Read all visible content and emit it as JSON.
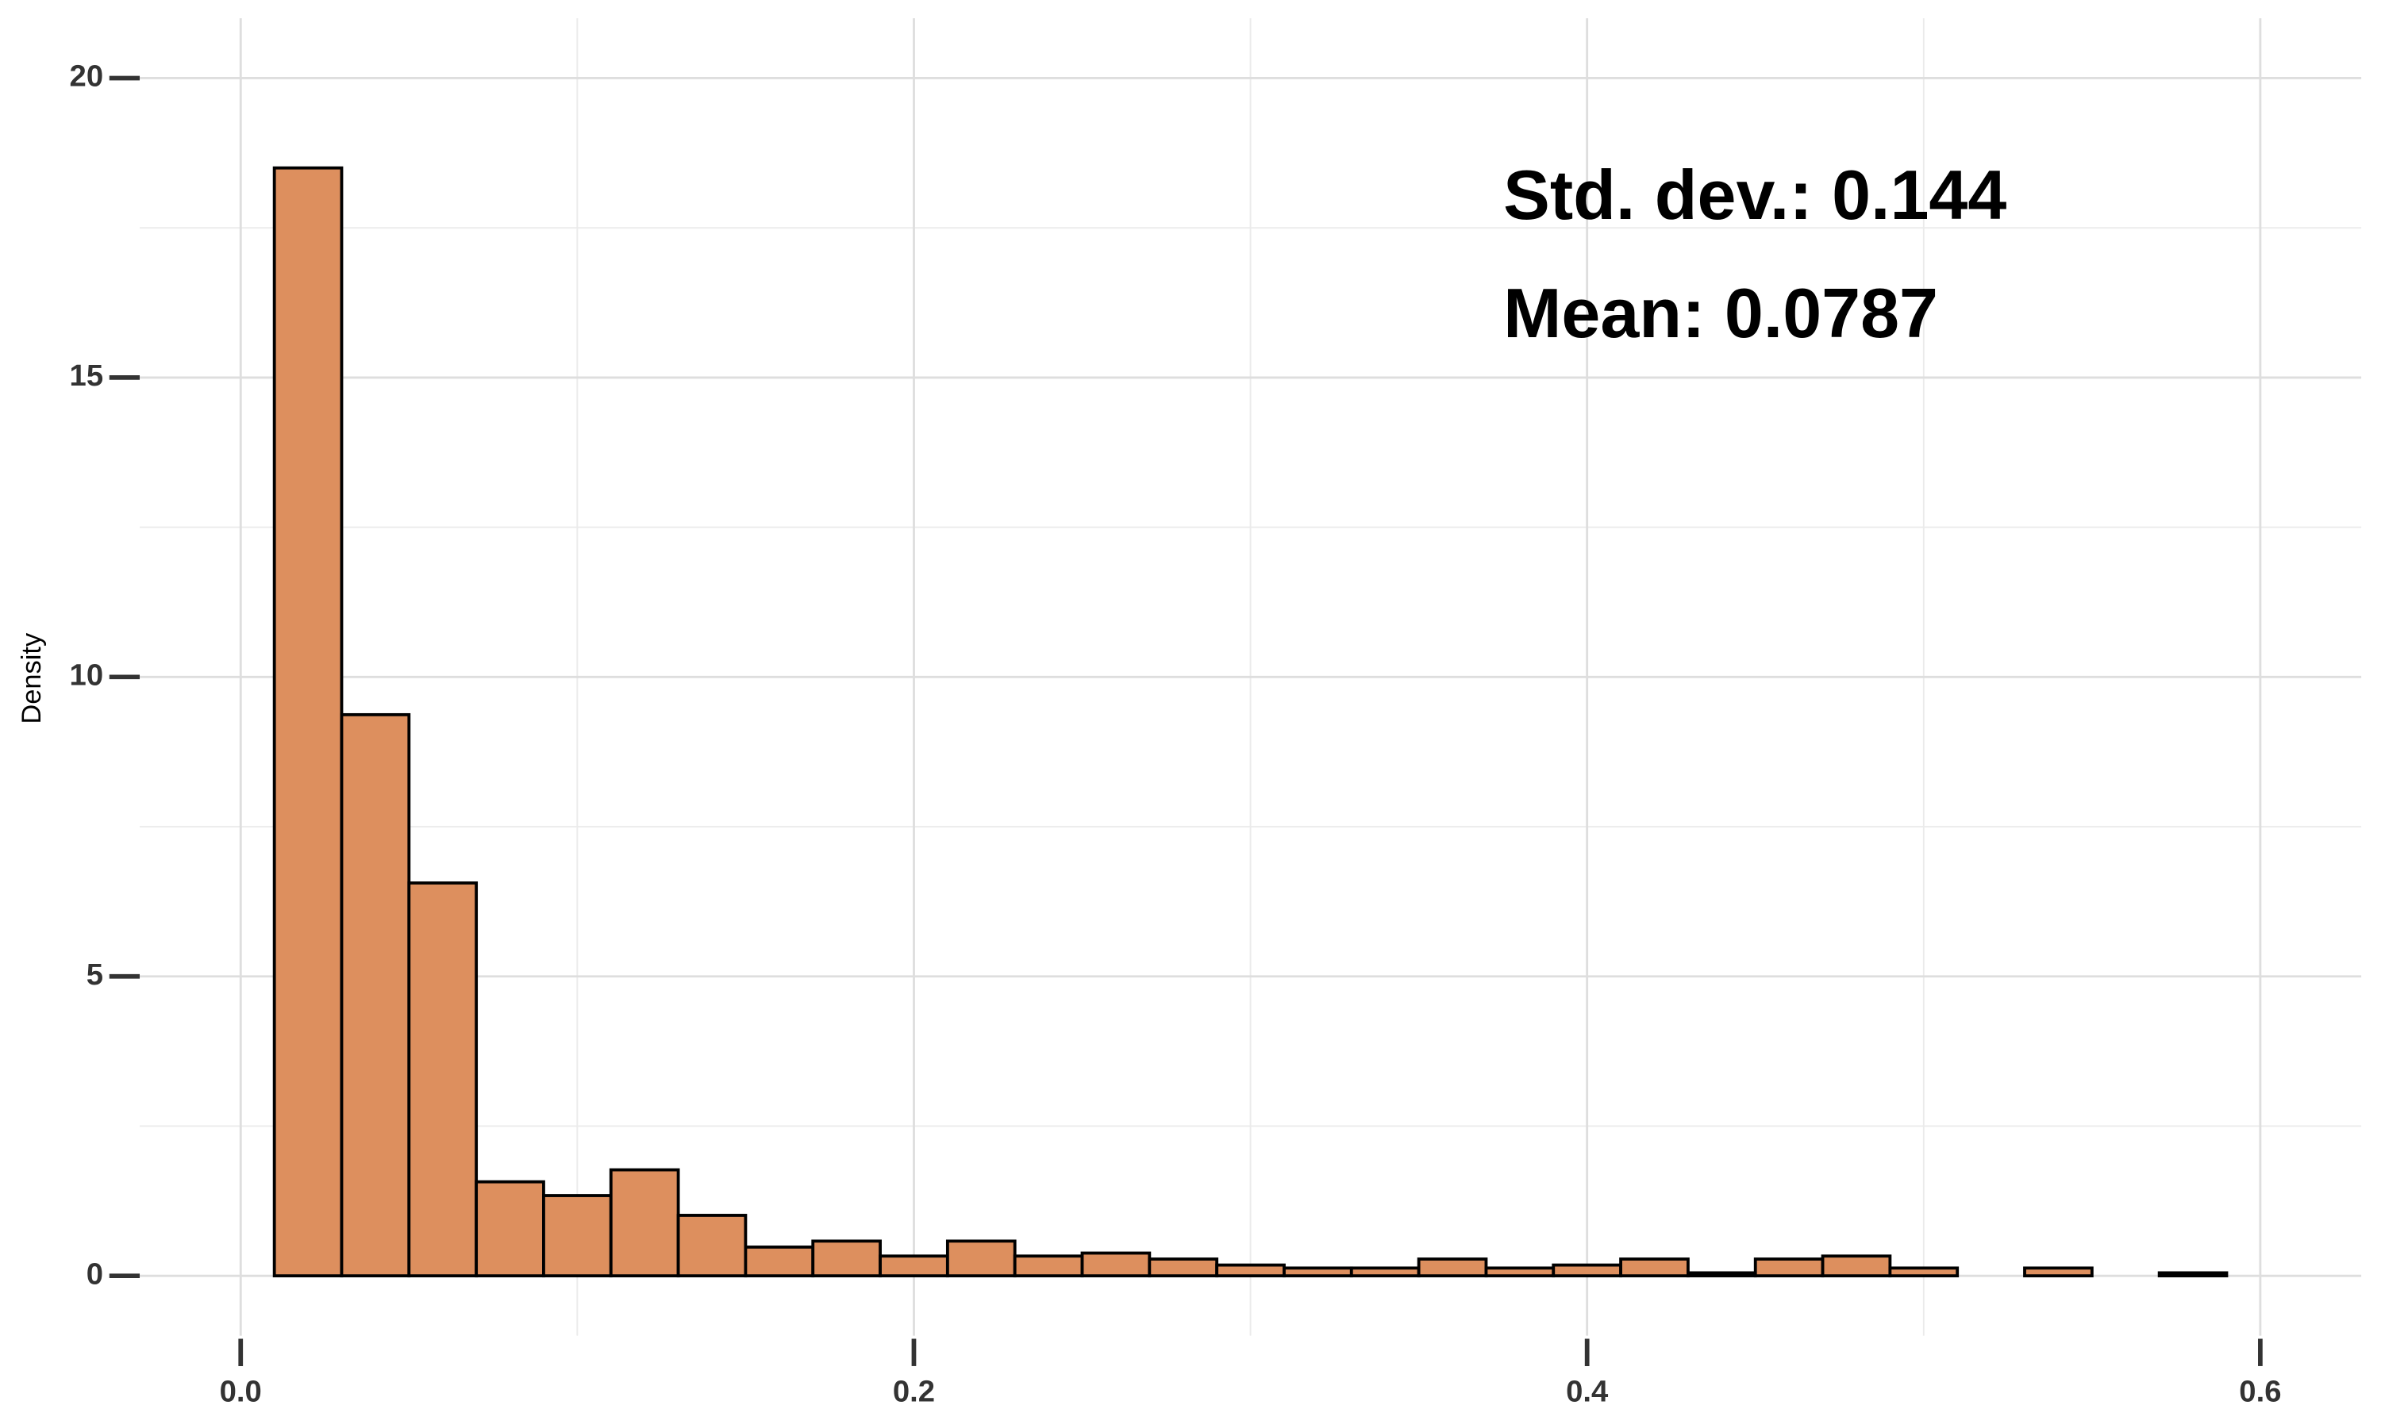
{
  "chart_data": {
    "type": "histogram",
    "y_label": "Density",
    "annotations": [
      "Std. dev.: 0.144",
      "Mean: 0.0787"
    ],
    "bins": [
      0.01,
      0.03,
      0.05,
      0.07,
      0.09,
      0.11,
      0.13,
      0.15,
      0.17,
      0.19,
      0.21,
      0.23,
      0.25,
      0.27,
      0.29,
      0.31,
      0.33,
      0.35,
      0.37,
      0.39,
      0.41,
      0.43,
      0.45,
      0.47,
      0.49,
      0.51,
      0.53,
      0.55,
      0.57,
      0.59
    ],
    "values": [
      18.5,
      9.37,
      6.56,
      1.57,
      1.34,
      1.77,
      1.01,
      0.48,
      0.58,
      0.33,
      0.58,
      0.33,
      0.38,
      0.28,
      0.18,
      0.13,
      0.13,
      0.28,
      0.13,
      0.18,
      0.28,
      0.05,
      0.28,
      0.33,
      0.13,
      0,
      0.13,
      0,
      0.05
    ],
    "color": "#dd8f5e",
    "edge_color": "#000000",
    "xlim": [
      -0.03,
      0.63
    ],
    "ylim": [
      -1,
      21
    ],
    "xticks": [
      {
        "value": 0,
        "label": "0.0"
      },
      0.2,
      0.4,
      0.6
    ],
    "yticks": [
      0,
      5,
      10,
      15,
      20
    ],
    "minor_xticks": [
      0.1,
      0.3,
      0.5
    ],
    "minor_yticks": [
      2.5,
      7.5,
      12.5,
      17.5
    ],
    "grid": true
  }
}
